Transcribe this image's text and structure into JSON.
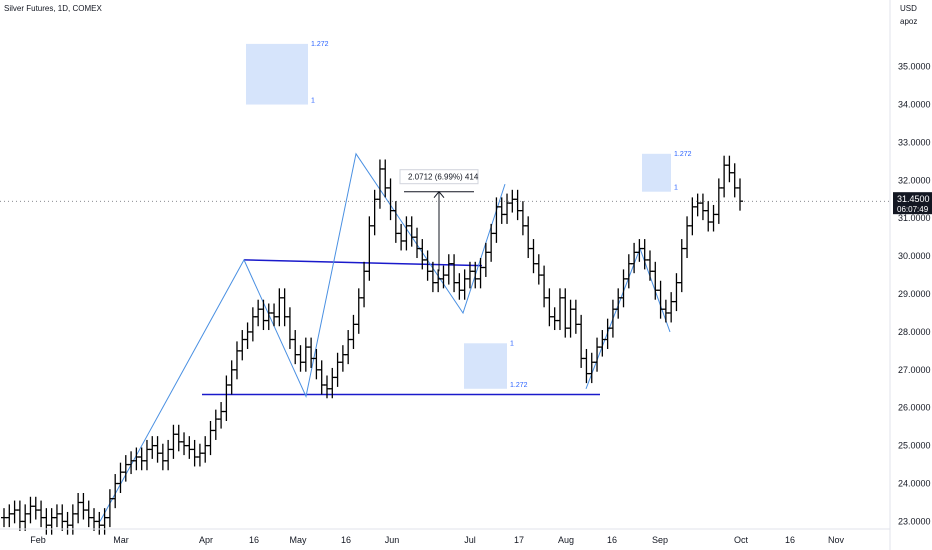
{
  "chart_data": {
    "type": "ohlc",
    "title": "Silver Futures, 1D, COMEX",
    "currency": "USD",
    "price_scale_mode": "apoz",
    "last_price": "31.4500",
    "countdown": "06:07:49",
    "ylim": [
      22.8,
      36.6
    ],
    "y_ticks": [
      "23.0000",
      "24.0000",
      "25.0000",
      "26.0000",
      "27.0000",
      "28.0000",
      "29.0000",
      "30.0000",
      "31.0000",
      "32.0000",
      "33.0000",
      "34.0000",
      "35.0000"
    ],
    "x_ticks": [
      "Feb",
      "Mar",
      "Apr",
      "16",
      "May",
      "16",
      "Jun",
      "Jul",
      "17",
      "Aug",
      "16",
      "Sep",
      "Oct",
      "16",
      "Nov"
    ],
    "series": [
      {
        "values": [
          23.1,
          23.2,
          23.3,
          23.0,
          23.2,
          23.4,
          23.3,
          23.1,
          22.9,
          23.1,
          23.2,
          23.0,
          22.9,
          23.2,
          23.5,
          23.3,
          23.1,
          23.0,
          22.9,
          23.1,
          23.6,
          24.0,
          24.3,
          24.5,
          24.6,
          24.7,
          24.6,
          24.9,
          25.0,
          24.8,
          24.6,
          24.9,
          25.3,
          25.1,
          25.0,
          24.9,
          24.7,
          24.8,
          25.0,
          25.4,
          25.7,
          25.9,
          26.6,
          27.0,
          27.5,
          27.8,
          28.0,
          28.4,
          28.6,
          28.3,
          28.5,
          28.4,
          28.9,
          28.4,
          27.8,
          27.4,
          27.2,
          27.6,
          27.3,
          27.0,
          26.6,
          26.5,
          26.8,
          27.2,
          27.4,
          27.8,
          28.2,
          28.9,
          29.6,
          30.8,
          31.5,
          32.3,
          31.8,
          31.2,
          30.6,
          30.4,
          30.8,
          30.5,
          30.2,
          29.9,
          29.6,
          29.3,
          29.4,
          29.5,
          29.8,
          29.3,
          29.1,
          29.4,
          29.6,
          29.4,
          29.7,
          30.1,
          30.6,
          31.3,
          31.1,
          31.4,
          31.5,
          31.2,
          30.8,
          30.2,
          29.8,
          29.5,
          28.9,
          28.4,
          28.3,
          28.9,
          28.1,
          28.6,
          28.2,
          27.3,
          26.9,
          27.2,
          27.6,
          27.8,
          28.1,
          28.6,
          28.9,
          29.4,
          29.8,
          30.1,
          30.2,
          29.9,
          29.6,
          29.1,
          28.6,
          28.5,
          28.8,
          29.3,
          30.2,
          30.8,
          31.3,
          31.4,
          31.2,
          30.9,
          31.1,
          31.8,
          32.4,
          32.2,
          31.8,
          31.45
        ]
      }
    ],
    "annotations": {
      "measure_label": "2.0712 (6.99%) 414",
      "fib_boxes": [
        {
          "top_label": "1.272",
          "bottom_label": "1",
          "price_top": 35.6,
          "price_bottom": 34.0
        },
        {
          "top_label": "1.272",
          "bottom_label": "1",
          "price_top": 32.7,
          "price_bottom": 31.7
        },
        {
          "top_label": "1",
          "bottom_label": "1.272",
          "price_top": 27.7,
          "price_bottom": 26.5
        }
      ],
      "support_level": 26.35,
      "resistance_level": 29.85
    }
  }
}
